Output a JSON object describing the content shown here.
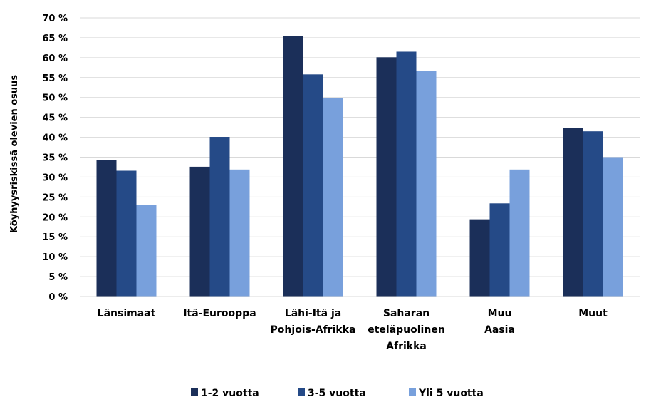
{
  "chart_data": {
    "type": "bar",
    "ylabel": "Köyhyysriskissä olevien osuus",
    "xlabel": "",
    "ylim": [
      0,
      70
    ],
    "y_ticks": [
      "0 %",
      "5 %",
      "10 %",
      "15 %",
      "20 %",
      "25 %",
      "30 %",
      "35 %",
      "40 %",
      "45 %",
      "50 %",
      "55 %",
      "60 %",
      "65 %",
      "70 %"
    ],
    "grid": true,
    "legend_position": "bottom",
    "categories": [
      [
        "Länsimaat"
      ],
      [
        "Itä-Eurooppa"
      ],
      [
        "Lähi-Itä ja",
        "Pohjois-Afrikka"
      ],
      [
        "Saharan",
        "eteläpuolinen",
        "Afrikka"
      ],
      [
        "Muu",
        "Aasia"
      ],
      [
        "Muut"
      ]
    ],
    "series": [
      {
        "name": "1-2 vuotta",
        "color": "#1b2f59",
        "values": [
          34.3,
          32.6,
          65.5,
          60.1,
          19.4,
          42.3
        ]
      },
      {
        "name": "3-5 vuotta",
        "color": "#254a87",
        "values": [
          31.6,
          40.1,
          55.8,
          61.5,
          23.4,
          41.5
        ]
      },
      {
        "name": "Yli 5 vuotta",
        "color": "#78a0dc",
        "values": [
          23.0,
          31.9,
          49.9,
          56.6,
          31.9,
          35.0
        ]
      }
    ]
  }
}
